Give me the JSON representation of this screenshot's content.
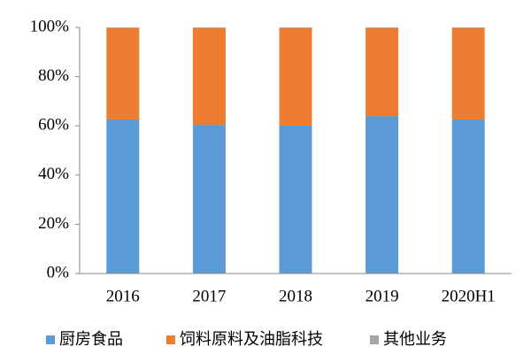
{
  "chart_data": {
    "type": "stacked-bar",
    "categories": [
      "2016",
      "2017",
      "2018",
      "2019",
      "2020H1"
    ],
    "series": [
      {
        "name": "厨房食品",
        "color": "#5b9bd5",
        "values": [
          62.6,
          60.4,
          60.1,
          64.0,
          62.6
        ]
      },
      {
        "name": "饲料原料及油脂科技",
        "color": "#ed7d31",
        "values": [
          37.2,
          39.4,
          39.7,
          35.8,
          37.2
        ]
      },
      {
        "name": "其他业务",
        "color": "#a5a5a5",
        "values": [
          0.2,
          0.2,
          0.2,
          0.2,
          0.2
        ]
      }
    ],
    "ylim": [
      0,
      100
    ],
    "yticks": [
      {
        "value": 0,
        "label": "0%"
      },
      {
        "value": 20,
        "label": "20%"
      },
      {
        "value": 40,
        "label": "40%"
      },
      {
        "value": 60,
        "label": "60%"
      },
      {
        "value": 80,
        "label": "80%"
      },
      {
        "value": 100,
        "label": "100%"
      }
    ],
    "grid": false
  }
}
